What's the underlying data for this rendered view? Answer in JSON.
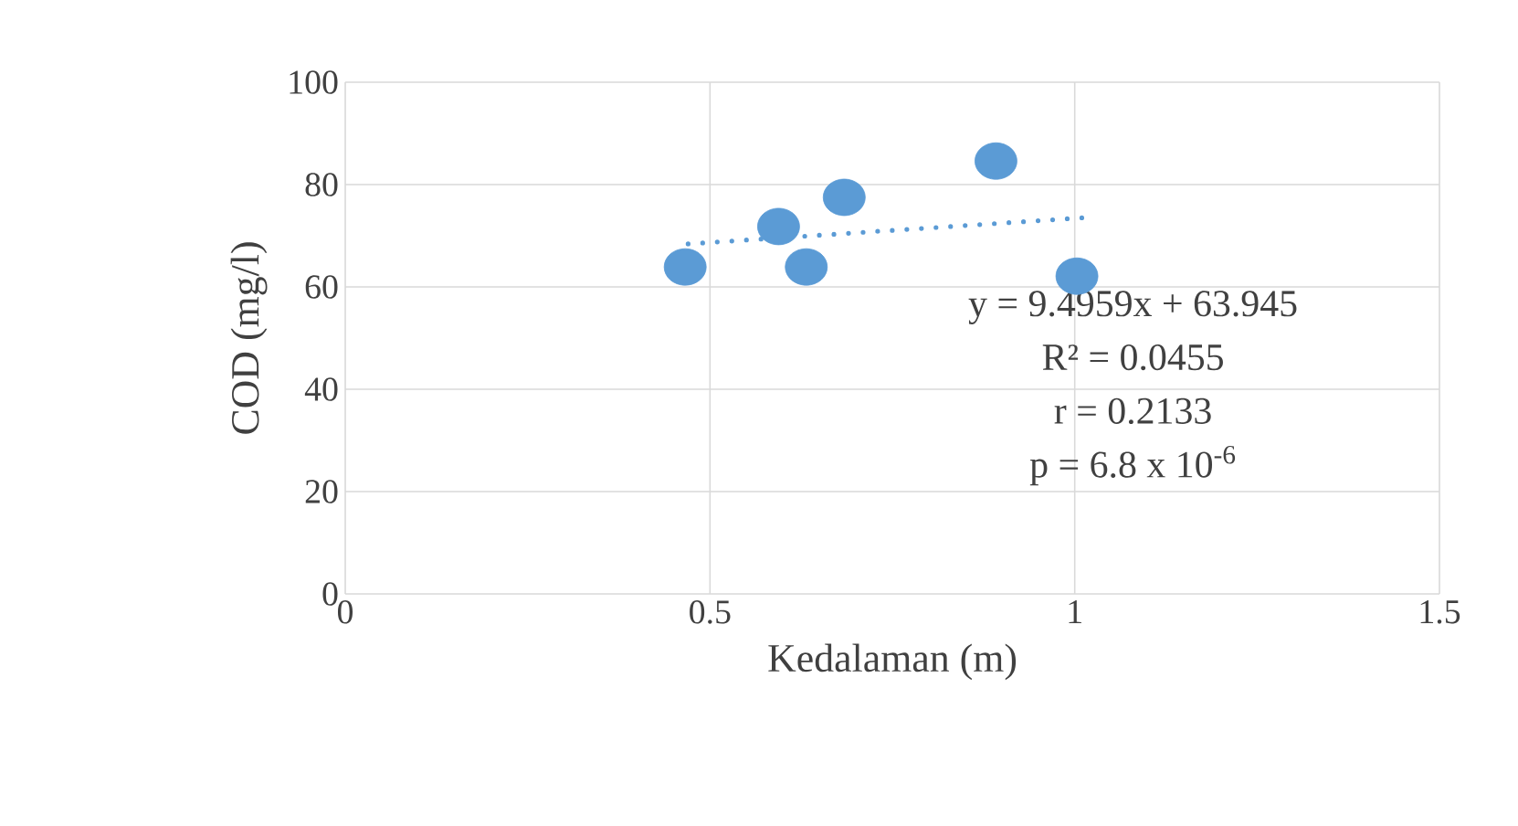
{
  "chart_data": {
    "type": "scatter",
    "xlabel": "Kedalaman (m)",
    "ylabel": "COD (mg/l)",
    "xlim": [
      0,
      1.5
    ],
    "xticks": [
      0,
      0.5,
      1,
      1.5
    ],
    "ylim": [
      0,
      100
    ],
    "yticks": [
      0,
      20,
      40,
      60,
      80,
      100
    ],
    "grid": true,
    "series": [
      {
        "color": "#5b9bd5",
        "marker": "circle",
        "x": [
          0.466,
          0.594,
          0.632,
          0.684,
          0.892,
          1.003
        ],
        "values": [
          63.9,
          71.8,
          63.9,
          77.5,
          84.6,
          62.1
        ]
      },
      {
        "type": "line",
        "color": "#5b9bd5",
        "marker": "none",
        "line_style": "dotted",
        "x": [
          0.47,
          1.01
        ],
        "values": [
          68.4,
          73.5
        ]
      }
    ],
    "annotations": [
      "y = 9.4959x  + 63.945",
      "R² = 0.0455",
      "r = 0.2133",
      "p = 6.8 x 10$^{-6}$"
    ]
  }
}
